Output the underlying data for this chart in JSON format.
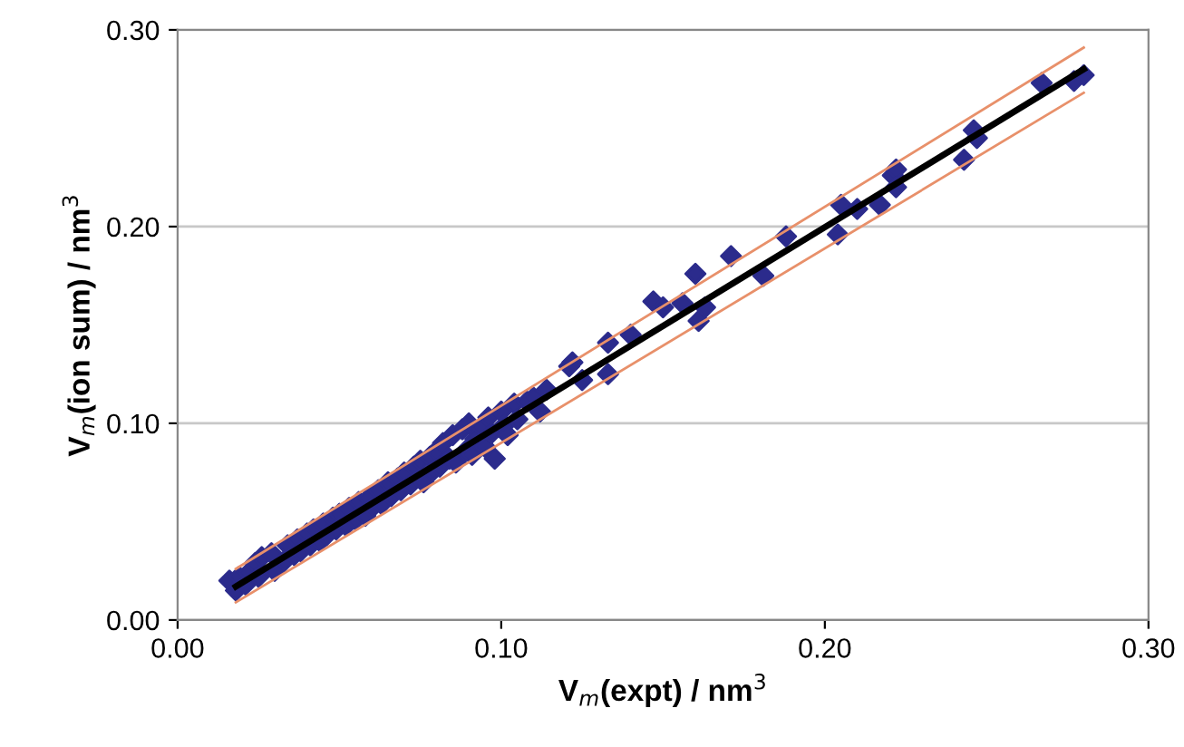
{
  "chart_data": {
    "type": "scatter",
    "xlabel": "V$_{m}$(expt) / nm$^{3}$",
    "ylabel": "V$_{m}$(ion sum) / nm$^{3}$",
    "xlim": [
      0,
      0.3
    ],
    "ylim": [
      0,
      0.3
    ],
    "xticks": [
      {
        "value": 0,
        "label": "0.00"
      },
      {
        "value": 0.1,
        "label": "0.10"
      },
      {
        "value": 0.2,
        "label": "0.20"
      },
      {
        "value": 0.3,
        "label": "0.30"
      }
    ],
    "yticks": [
      {
        "value": 0,
        "label": "0.00"
      },
      {
        "value": 0.1,
        "label": "0.10"
      },
      {
        "value": 0.2,
        "label": "0.20"
      },
      {
        "value": 0.3,
        "label": "0.30"
      }
    ],
    "grid": "y",
    "legend": false,
    "marker": "diamond",
    "series": [
      {
        "color": "#2b2b8c",
        "x": [
          0.016,
          0.018,
          0.019,
          0.021,
          0.022,
          0.024,
          0.025,
          0.026,
          0.029,
          0.03,
          0.033,
          0.034,
          0.036,
          0.037,
          0.038,
          0.04,
          0.041,
          0.042,
          0.044,
          0.045,
          0.046,
          0.048,
          0.049,
          0.05,
          0.052,
          0.053,
          0.055,
          0.056,
          0.058,
          0.059,
          0.06,
          0.062,
          0.063,
          0.065,
          0.066,
          0.068,
          0.069,
          0.07,
          0.072,
          0.073,
          0.075,
          0.076,
          0.078,
          0.079,
          0.08,
          0.081,
          0.082,
          0.084,
          0.085,
          0.086,
          0.088,
          0.089,
          0.09,
          0.091,
          0.092,
          0.094,
          0.095,
          0.096,
          0.097,
          0.098,
          0.1,
          0.101,
          0.102,
          0.104,
          0.105,
          0.108,
          0.11,
          0.112,
          0.114,
          0.121,
          0.122,
          0.125,
          0.133,
          0.133,
          0.14,
          0.147,
          0.15,
          0.156,
          0.16,
          0.161,
          0.163,
          0.171,
          0.181,
          0.188,
          0.204,
          0.205,
          0.21,
          0.217,
          0.221,
          0.222,
          0.222,
          0.243,
          0.246,
          0.247,
          0.267,
          0.277,
          0.28
        ],
        "values": [
          0.02,
          0.015,
          0.022,
          0.018,
          0.024,
          0.029,
          0.022,
          0.032,
          0.034,
          0.025,
          0.03,
          0.038,
          0.033,
          0.041,
          0.035,
          0.044,
          0.038,
          0.046,
          0.04,
          0.049,
          0.043,
          0.052,
          0.046,
          0.054,
          0.048,
          0.057,
          0.051,
          0.06,
          0.053,
          0.062,
          0.057,
          0.066,
          0.059,
          0.07,
          0.063,
          0.072,
          0.066,
          0.075,
          0.069,
          0.078,
          0.081,
          0.07,
          0.083,
          0.076,
          0.086,
          0.078,
          0.09,
          0.082,
          0.094,
          0.08,
          0.097,
          0.086,
          0.1,
          0.084,
          0.092,
          0.098,
          0.088,
          0.103,
          0.095,
          0.082,
          0.106,
          0.099,
          0.094,
          0.11,
          0.102,
          0.111,
          0.113,
          0.106,
          0.117,
          0.129,
          0.131,
          0.122,
          0.141,
          0.125,
          0.145,
          0.162,
          0.159,
          0.161,
          0.176,
          0.152,
          0.159,
          0.185,
          0.175,
          0.195,
          0.196,
          0.211,
          0.209,
          0.211,
          0.226,
          0.229,
          0.22,
          0.234,
          0.249,
          0.245,
          0.273,
          0.274,
          0.277
        ]
      },
      {
        "type": "line",
        "color": "#e8906a",
        "marker": "none",
        "line_style": "solid",
        "x": [
          0.018,
          0.28
        ],
        "values": [
          0.026,
          0.291
        ]
      },
      {
        "type": "line",
        "color": "#e8906a",
        "marker": "none",
        "line_style": "solid",
        "x": [
          0.018,
          0.28
        ],
        "values": [
          0.009,
          0.268
        ]
      },
      {
        "type": "line",
        "color": "#000000",
        "marker": "none",
        "line_style": "solid",
        "x": [
          0.018,
          0.28
        ],
        "values": [
          0.017,
          0.28
        ]
      }
    ]
  }
}
